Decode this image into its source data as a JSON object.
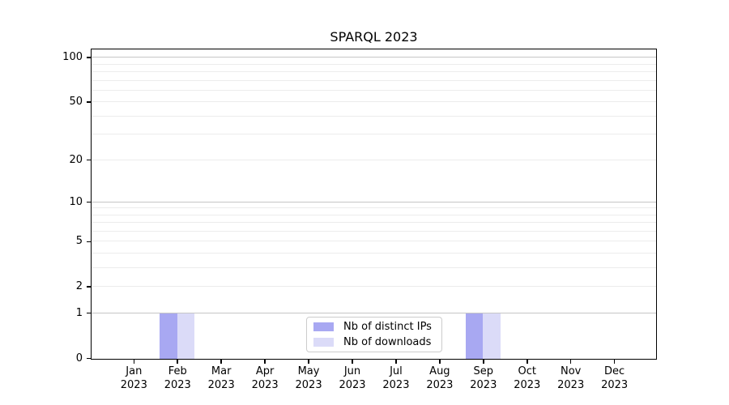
{
  "chart_data": {
    "type": "bar",
    "title": "SPARQL 2023",
    "categories": [
      "Jan",
      "Feb",
      "Mar",
      "Apr",
      "May",
      "Jun",
      "Jul",
      "Aug",
      "Sep",
      "Oct",
      "Nov",
      "Dec"
    ],
    "category_year_label": "2023",
    "series": [
      {
        "name": "Nb of distinct IPs",
        "color": "#a8a8f2",
        "values": [
          0,
          1,
          0,
          0,
          0,
          0,
          0,
          0,
          1,
          0,
          0,
          0
        ]
      },
      {
        "name": "Nb of downloads",
        "color": "#dbdbf8",
        "values": [
          0,
          1,
          0,
          0,
          0,
          0,
          0,
          0,
          1,
          0,
          0,
          0
        ]
      }
    ],
    "xlabel": "",
    "ylabel": "",
    "yscale": "log1p",
    "ylim": [
      0,
      113
    ],
    "yticks": [
      {
        "value": 0,
        "label": "0"
      },
      {
        "value": 1,
        "label": "1"
      },
      {
        "value": 2,
        "label": "2"
      },
      {
        "value": 5,
        "label": "5"
      },
      {
        "value": 10,
        "label": "10"
      },
      {
        "value": 20,
        "label": "20"
      },
      {
        "value": 50,
        "label": "50"
      },
      {
        "value": 100,
        "label": "100"
      }
    ],
    "major_grid_values": [
      1,
      10,
      100
    ],
    "minor_grid_values": [
      2,
      3,
      4,
      5,
      6,
      7,
      8,
      9,
      20,
      30,
      40,
      50,
      60,
      70,
      80,
      90
    ],
    "grid": true,
    "legend_position": "lower center"
  },
  "colors": {
    "background": "#ffffff",
    "axis": "#000000",
    "major_grid": "#c6c6c6",
    "minor_grid": "#ececec",
    "legend_border": "#cccccc",
    "text": "#000000"
  }
}
